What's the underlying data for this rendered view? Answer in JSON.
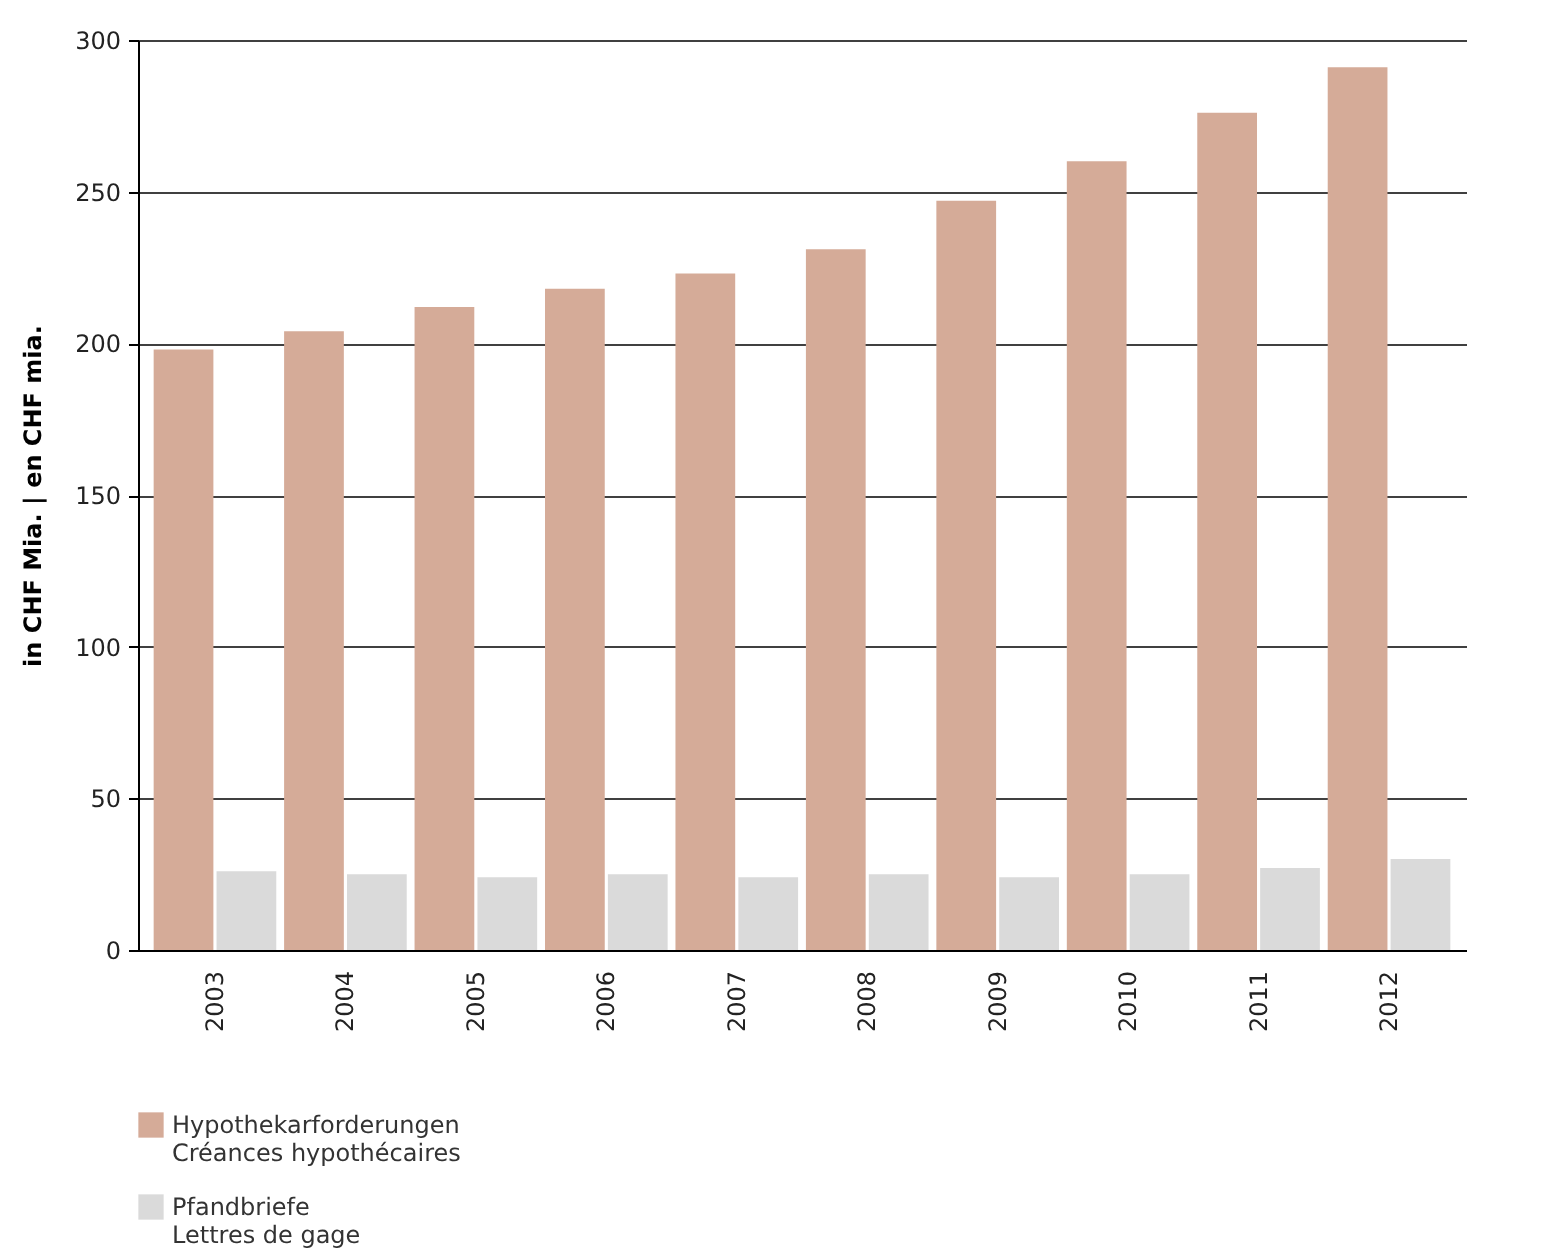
{
  "chart_data": {
    "type": "bar",
    "ylabel": "in CHF Mia. | en CHF mia.",
    "categories": [
      "2003",
      "2004",
      "2005",
      "2006",
      "2007",
      "2008",
      "2009",
      "2010",
      "2011",
      "2012"
    ],
    "series": [
      {
        "name": "Hypothekarforderungen\nCréances hypothécaires",
        "color": "#d5ab98",
        "values": [
          198,
          204,
          212,
          218,
          223,
          231,
          247,
          260,
          276,
          291
        ]
      },
      {
        "name": "Pfandbriefe\nLettres de gage",
        "color": "#dadada",
        "values": [
          26,
          25,
          24,
          25,
          24,
          25,
          24,
          25,
          27,
          30
        ]
      }
    ],
    "ylim": [
      0,
      300
    ],
    "yticks": [
      0,
      50,
      100,
      150,
      200,
      250,
      300
    ],
    "grid": "y",
    "legend": "bottom"
  }
}
